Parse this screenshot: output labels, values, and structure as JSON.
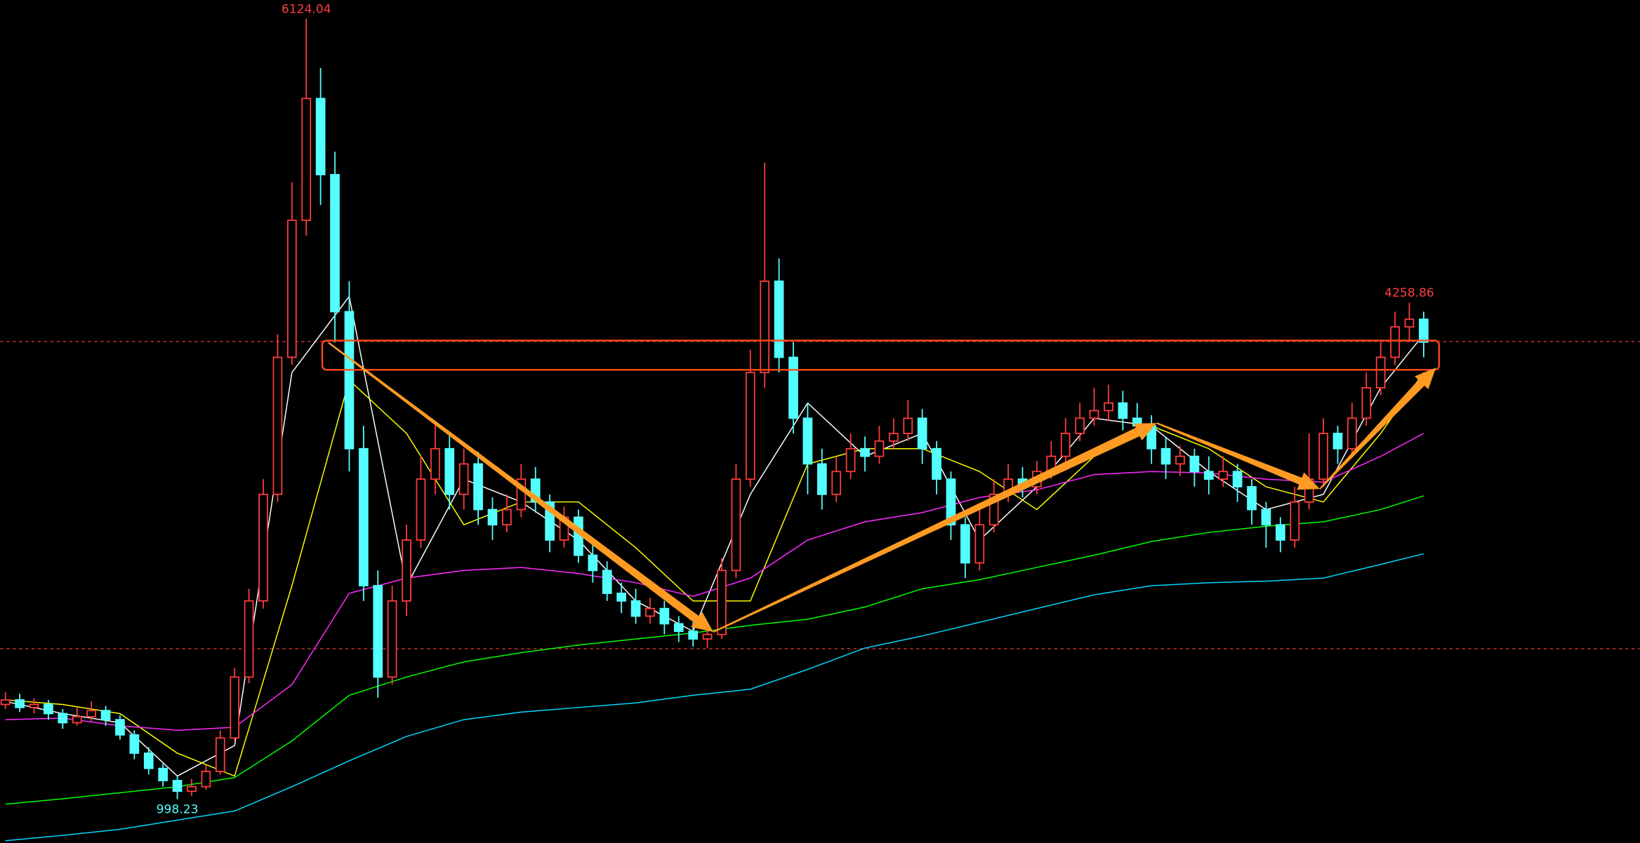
{
  "chart_data": {
    "type": "candlestick",
    "ylim": [
      710,
      6247
    ],
    "up_color": "#ff3c3c",
    "down_color": "#54ffff",
    "open": [
      1620,
      1650,
      1600,
      1620,
      1560,
      1500,
      1540,
      1580,
      1520,
      1420,
      1300,
      1200,
      1120,
      1050,
      1080,
      1180,
      1400,
      1800,
      2300,
      3000,
      3900,
      4800,
      5600,
      5100,
      4200,
      3300,
      2400,
      1800,
      2300,
      2700,
      3100,
      3300,
      3000,
      3200,
      2900,
      2800,
      2900,
      3100,
      2950,
      2700,
      2850,
      2600,
      2500,
      2350,
      2300,
      2200,
      2250,
      2150,
      2100,
      2050,
      2080,
      2500,
      3100,
      3800,
      4400,
      3900,
      3500,
      3200,
      3000,
      3150,
      3300,
      3250,
      3350,
      3400,
      3500,
      3300,
      3100,
      2800,
      2550,
      2800,
      3000,
      3100,
      3050,
      3150,
      3250,
      3400,
      3500,
      3550,
      3600,
      3500,
      3450,
      3300,
      3200,
      3250,
      3150,
      3100,
      3150,
      3050,
      2900,
      2800,
      2700,
      2950,
      3100,
      3400,
      3300,
      3500,
      3700,
      3900,
      4100,
      4150
    ],
    "high": [
      1700,
      1690,
      1660,
      1650,
      1590,
      1600,
      1640,
      1610,
      1550,
      1450,
      1340,
      1230,
      1150,
      1130,
      1220,
      1450,
      1860,
      2380,
      3100,
      4050,
      5050,
      6124.04,
      5800,
      5250,
      4400,
      3450,
      2500,
      2400,
      2800,
      3250,
      3480,
      3400,
      3300,
      3280,
      2980,
      3000,
      3200,
      3180,
      3000,
      2920,
      2900,
      2680,
      2560,
      2420,
      2380,
      2320,
      2300,
      2200,
      2160,
      2150,
      2580,
      3200,
      3950,
      5178.19,
      4550,
      4000,
      3600,
      3300,
      3250,
      3400,
      3380,
      3450,
      3500,
      3620,
      3560,
      3350,
      3150,
      2850,
      2900,
      3100,
      3200,
      3180,
      3220,
      3350,
      3500,
      3600,
      3700,
      3720,
      3680,
      3600,
      3520,
      3380,
      3320,
      3300,
      3250,
      3250,
      3200,
      3100,
      2950,
      2850,
      3050,
      3400,
      3500,
      3450,
      3600,
      3800,
      4000,
      4200,
      4258.86,
      4200
    ],
    "low": [
      1590,
      1570,
      1560,
      1520,
      1460,
      1480,
      1510,
      1480,
      1390,
      1260,
      1160,
      1080,
      998.23,
      1020,
      1060,
      1160,
      1380,
      1760,
      2250,
      2950,
      3850,
      4700,
      4900,
      4000,
      3150,
      2300,
      1664,
      1750,
      2200,
      2650,
      3000,
      2900,
      2900,
      2800,
      2700,
      2750,
      2850,
      2880,
      2620,
      2650,
      2550,
      2420,
      2300,
      2220,
      2150,
      2150,
      2080,
      2030,
      2000,
      1990,
      2050,
      2450,
      3050,
      3700,
      3800,
      3400,
      3000,
      2900,
      2950,
      3100,
      3150,
      3200,
      3300,
      3350,
      3200,
      3000,
      2700,
      2450,
      2500,
      2750,
      2950,
      2980,
      3000,
      3100,
      3200,
      3350,
      3450,
      3480,
      3420,
      3380,
      3200,
      3100,
      3120,
      3050,
      3000,
      3050,
      2950,
      2800,
      2650,
      2620,
      2650,
      2900,
      3050,
      3200,
      3250,
      3450,
      3650,
      3850,
      4000,
      3900
    ],
    "close": [
      1650,
      1600,
      1620,
      1560,
      1500,
      1540,
      1580,
      1520,
      1420,
      1300,
      1200,
      1120,
      1050,
      1080,
      1180,
      1400,
      1800,
      2300,
      3000,
      3900,
      4800,
      5600,
      5100,
      4200,
      3300,
      2400,
      1800,
      2300,
      2700,
      3100,
      3300,
      3000,
      3200,
      2900,
      2800,
      2900,
      3100,
      2950,
      2700,
      2850,
      2600,
      2500,
      2350,
      2300,
      2200,
      2250,
      2150,
      2100,
      2050,
      2080,
      2500,
      3100,
      3800,
      4400,
      3900,
      3500,
      3200,
      3000,
      3150,
      3300,
      3250,
      3350,
      3400,
      3500,
      3300,
      3100,
      2800,
      2550,
      2800,
      3000,
      3100,
      3050,
      3150,
      3250,
      3400,
      3500,
      3550,
      3600,
      3500,
      3450,
      3300,
      3200,
      3250,
      3150,
      3100,
      3150,
      3050,
      2900,
      2800,
      2700,
      2950,
      3100,
      3400,
      3300,
      3500,
      3700,
      3900,
      4100,
      4150,
      4000
    ],
    "ma_x": [
      0,
      4,
      8,
      12,
      16,
      20,
      24,
      28,
      32,
      36,
      40,
      44,
      48,
      52,
      56,
      60,
      64,
      68,
      72,
      76,
      80,
      84,
      88,
      92,
      96,
      99
    ],
    "moving_averages": [
      {
        "color": "#ffffff",
        "values": [
          1640,
          1560,
          1500,
          1150,
          1350,
          3800,
          4300,
          2400,
          3100,
          2950,
          2700,
          2300,
          2100,
          3000,
          3600,
          3250,
          3400,
          2700,
          3050,
          3500,
          3450,
          3150,
          2900,
          3000,
          3700,
          4050
        ]
      },
      {
        "color": "#ffff00",
        "values": [
          1650,
          1620,
          1560,
          1300,
          1150,
          2400,
          3750,
          3400,
          2800,
          2950,
          2950,
          2650,
          2300,
          2300,
          3200,
          3300,
          3300,
          3150,
          2900,
          3250,
          3450,
          3300,
          3050,
          2950,
          3400,
          3800
        ]
      },
      {
        "color": "#ff2aff",
        "values": [
          1520,
          1530,
          1480,
          1450,
          1470,
          1750,
          2350,
          2450,
          2500,
          2520,
          2480,
          2420,
          2330,
          2450,
          2700,
          2820,
          2880,
          2980,
          3030,
          3130,
          3150,
          3140,
          3100,
          3080,
          3250,
          3400
        ]
      },
      {
        "color": "#00ff00",
        "values": [
          965,
          1000,
          1040,
          1080,
          1140,
          1380,
          1680,
          1800,
          1900,
          1960,
          2010,
          2050,
          2090,
          2140,
          2180,
          2260,
          2380,
          2440,
          2520,
          2600,
          2690,
          2750,
          2790,
          2820,
          2900,
          2990
        ]
      },
      {
        "color": "#00d8ff",
        "values": [
          725,
          760,
          800,
          860,
          920,
          1080,
          1250,
          1410,
          1520,
          1570,
          1600,
          1630,
          1680,
          1720,
          1850,
          1990,
          2070,
          2160,
          2250,
          2340,
          2400,
          2420,
          2430,
          2450,
          2540,
          2610
        ]
      }
    ]
  }
}
